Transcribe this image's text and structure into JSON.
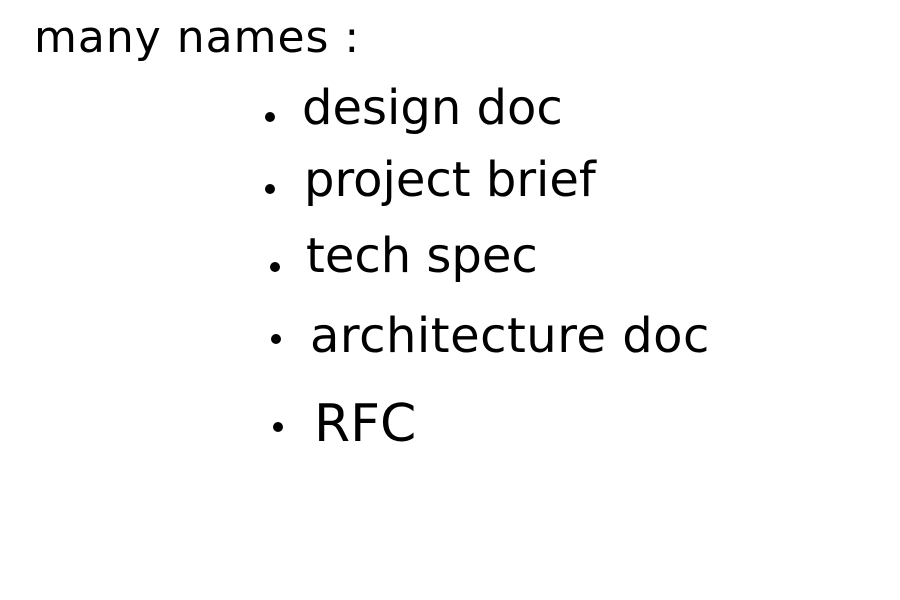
{
  "heading": "many names :",
  "items": [
    {
      "label": "design doc"
    },
    {
      "label": "project brief"
    },
    {
      "label": "tech spec"
    },
    {
      "label": "architecture doc"
    },
    {
      "label": "RFC"
    }
  ]
}
